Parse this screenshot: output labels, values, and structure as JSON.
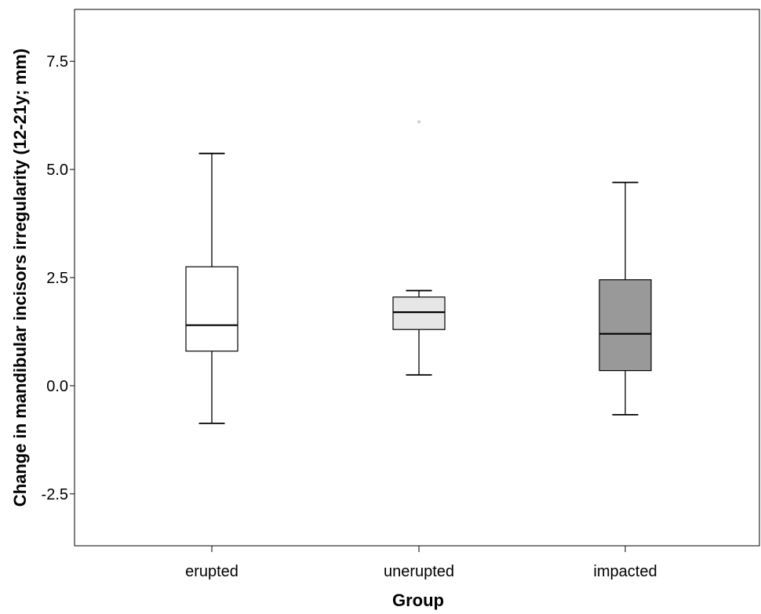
{
  "chart_data": {
    "type": "box",
    "title": "",
    "xlabel": "Group",
    "ylabel": "Change in mandibular incisors irregularity (12-21y; mm)",
    "ylim": [
      -3.7,
      8.7
    ],
    "yticks": [
      7.5,
      5.0,
      2.5,
      0.0,
      -2.5
    ],
    "ytick_labels": [
      "7.5",
      "5.0",
      "2.5",
      "0.0",
      "-2.5"
    ],
    "categories": [
      "erupted",
      "unerupted",
      "impacted"
    ],
    "grid": false,
    "legend": "none",
    "boxes": [
      {
        "category": "erupted",
        "whisker_low": -0.87,
        "q1": 0.8,
        "median": 1.4,
        "q3": 2.75,
        "whisker_high": 5.37,
        "fill": "#ffffff",
        "outliers": []
      },
      {
        "category": "unerupted",
        "whisker_low": 0.25,
        "q1": 1.3,
        "median": 1.7,
        "q3": 2.05,
        "whisker_high": 2.2,
        "fill": "#e6e6e6",
        "outliers": [
          6.1
        ]
      },
      {
        "category": "impacted",
        "whisker_low": -0.67,
        "q1": 0.35,
        "median": 1.2,
        "q3": 2.45,
        "whisker_high": 4.7,
        "fill": "#999999",
        "outliers": []
      }
    ]
  }
}
